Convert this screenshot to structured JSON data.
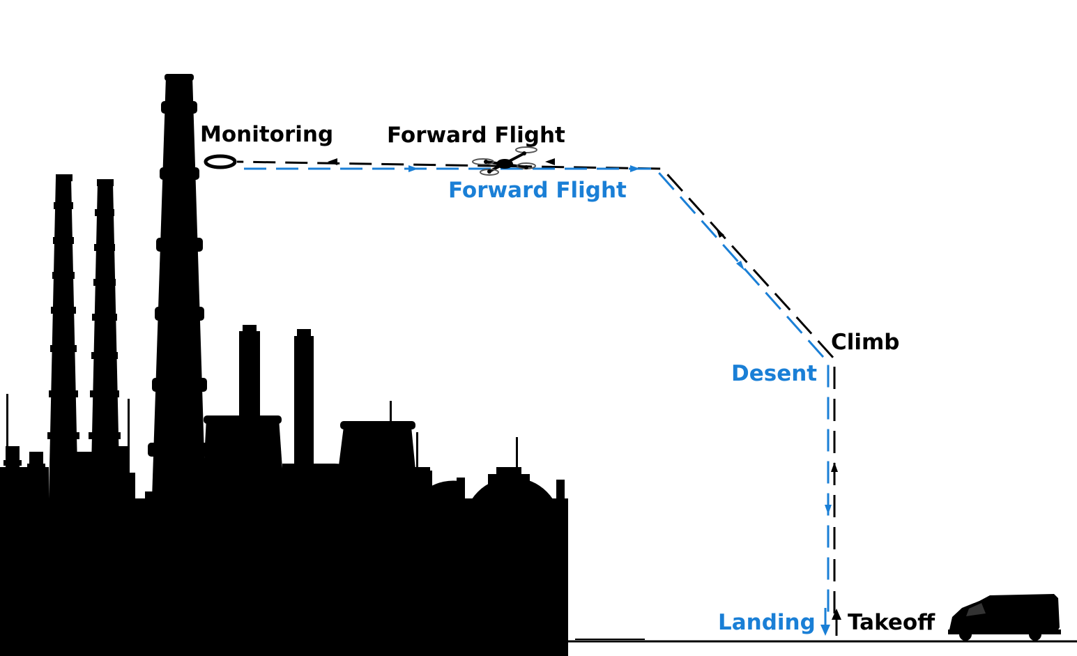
{
  "labels": {
    "monitoring": "Monitoring",
    "forward_flight_out": "Forward Flight",
    "forward_flight_return": "Forward Flight",
    "climb": "Climb",
    "descent": "Desent",
    "landing": "Landing",
    "takeoff": "Takeoff"
  },
  "colors": {
    "outbound_path": "#000000",
    "return_path": "#1a7fd6",
    "silhouette": "#000000",
    "background": "#ffffff"
  },
  "icons": {
    "uav": "quadcopter-drone-icon",
    "monitoring_target": "monitoring-ring-icon",
    "ground_vehicle": "van-icon",
    "facility": "industrial-plant-silhouette"
  }
}
